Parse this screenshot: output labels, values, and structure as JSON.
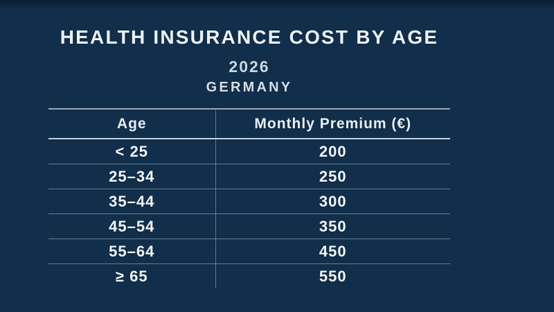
{
  "slide": {
    "title": "HEALTH INSURANCE COST BY AGE",
    "subtitle_year": "2026",
    "subtitle_country": "GERMANY"
  },
  "table": {
    "columns": [
      "Age",
      "Monthly Premium (€)"
    ],
    "rows": [
      {
        "age": "< 25",
        "premium": "200"
      },
      {
        "age": "25–34",
        "premium": "250"
      },
      {
        "age": "35–44",
        "premium": "300"
      },
      {
        "age": "45–54",
        "premium": "350"
      },
      {
        "age": "55–64",
        "premium": "450"
      },
      {
        "age": "≥ 65",
        "premium": "550"
      }
    ]
  },
  "chart_data": {
    "type": "table",
    "title": "HEALTH INSURANCE COST BY AGE",
    "subtitle": "2026",
    "region": "GERMANY",
    "columns": [
      "Age",
      "Monthly Premium (€)"
    ],
    "categories": [
      "< 25",
      "25–34",
      "35–44",
      "45–54",
      "55–64",
      "≥ 65"
    ],
    "values": [
      200,
      250,
      300,
      350,
      450,
      550
    ]
  },
  "colors": {
    "background": "#112e4a",
    "title_text": "#eef2f6",
    "subtitle_text": "#ccd7e2",
    "cell_text": "#f3f6f9",
    "grid_line": "#a4b6c7"
  }
}
